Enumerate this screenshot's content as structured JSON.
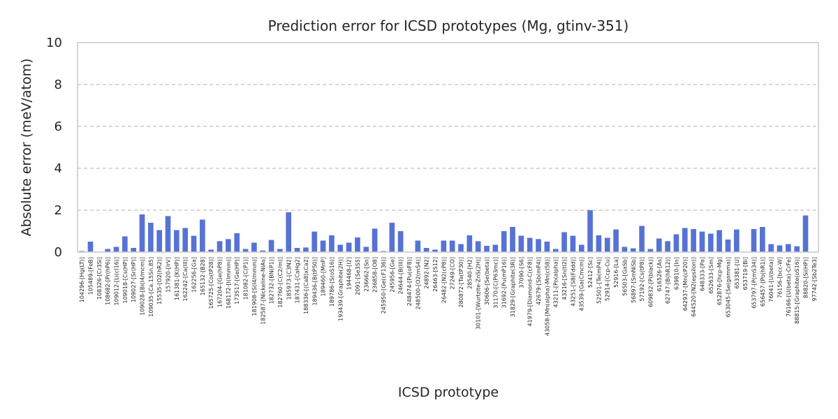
{
  "chart_data": {
    "type": "bar",
    "title": "Prediction error for ICSD prototypes (Mg, gtinv-351)",
    "xlabel": "ICSD prototype",
    "ylabel": "Absolute error (meV/atom)",
    "ylim": [
      0,
      10
    ],
    "yticks": [
      0,
      2,
      4,
      6,
      8,
      10
    ],
    "grid": "y-dashed",
    "categories": [
      "104296-[Hg(LT)]",
      "105489-[FeB]",
      "108326-[Cr3Si]",
      "108682-[Pr(hP6)]",
      "109012-[Li(cI16)]",
      "109018-[Cs(HP)]",
      "109027-[Sr(HP)]",
      "109028-[Bi(I4/mcm)]",
      "109035-[Ca.15Sn.85]",
      "15535-[O2(hR2)]",
      "157920-[IrV]",
      "161381-[K(HP)]",
      "162242-[Ca(III)]",
      "162256-[Ga]",
      "165132-[B28]",
      "165725-[Co(tP28)]",
      "167204-[Ge(hP8)]",
      "168172-[I(Immm)]",
      "173517-[Ge(HP)]",
      "181082-[C(P1)]",
      "181908-[S(I4/mmm)]",
      "182587-[Nickeline-NiAs]",
      "182732-[BN(P1)]",
      "182760-[C(C2/m)]",
      "185973-[C3N2]",
      "187431-[CaHg2]",
      "188336-[(Ca8)xCa2]",
      "189436-[B(tP50)]",
      "189460-[MnP]",
      "189786-[S(oS16)]",
      "193439-[Graphite(2H)]",
      "194468-[I2]",
      "2091-[Se3S5]",
      "236662-[Sn]",
      "236858-[O8]",
      "245950-[Ge(cF136)]",
      "245956-[Ge]",
      "24644-[B(III)]",
      "248474-[Pu(oF8)]",
      "248500-[O2(mS4)]",
      "24892-[N2]",
      "26463-[S12]",
      "26482-[N2(cP8)]",
      "27249-[CO]",
      "280872-[Ta(tP30)]",
      "28540-[H2]",
      "30101-[Wurtzite-ZnS(2H)]",
      "30606-[Se(beta)]",
      "31170-[C(P63mc)]",
      "31692-[Pu(mP16)]",
      "31829-[Graphite(3R)]",
      "37090-[S6]",
      "41979-[Diamond-C(cF8)]",
      "42679-[Sb(mP4)]",
      "43058-[Mn(alpha)-Mn(cI58)]",
      "43211-[Po(alpha)]",
      "43216-[Sn(tI2)]",
      "43251-[S8(Fddd)]",
      "43539-[Ga(Cmcm)]",
      "52412-[Sc]",
      "52501-[Te(mP4)]",
      "52914-[Ccp-Cu]",
      "52916-[La]",
      "56503-[GaSb]",
      "56897-[SmNiSb]",
      "57192-[Cs(tP8)]",
      "609832-[P(black)]",
      "616526-[As]",
      "62747-[B(hR12)]",
      "639810-[In]",
      "642937-[Mn(cP20)]",
      "644520-[N2(epsilon)]",
      "648333-[Pa]",
      "652633-[Sm]",
      "652876-[hcp-Mg]",
      "653045-[Se(gamma)]",
      "653381-[U]",
      "653719-[Bi]",
      "653797-[P(mS34)]",
      "656457-[Po(hR1)]",
      "76041-[U(beta)]",
      "76156-[bcc-W]",
      "76166-[U(beta)-CrFe]",
      "88815-[Graphite(oS16)]",
      "88820-[Si(HP)]",
      "97742-[Sb2Te3]"
    ],
    "values": [
      0.05,
      0.5,
      0.0,
      0.15,
      0.25,
      0.75,
      0.2,
      1.8,
      1.4,
      1.05,
      1.72,
      1.05,
      1.15,
      0.78,
      1.55,
      0.12,
      0.52,
      0.62,
      0.9,
      0.15,
      0.45,
      0.08,
      0.58,
      0.15,
      1.9,
      0.2,
      0.22,
      0.98,
      0.55,
      0.8,
      0.35,
      0.45,
      0.7,
      0.25,
      1.12,
      0.05,
      1.4,
      1.0,
      0.0,
      0.55,
      0.2,
      0.12,
      0.55,
      0.55,
      0.38,
      0.8,
      0.52,
      0.3,
      0.35,
      1.0,
      1.2,
      0.78,
      0.68,
      0.62,
      0.5,
      0.15,
      0.95,
      0.78,
      0.35,
      2.0,
      0.8,
      0.68,
      1.08,
      0.25,
      0.18,
      1.25,
      0.15,
      0.65,
      0.52,
      0.85,
      1.15,
      1.1,
      0.98,
      0.88,
      1.05,
      0.6,
      1.08,
      0.0,
      1.1,
      1.2,
      0.38,
      0.32,
      0.38,
      0.28,
      1.75,
      0.0
    ],
    "colors": {
      "bar": "#5673d4",
      "grid": "#cccccc",
      "frame": "#cccccc",
      "text": "#262626"
    }
  }
}
